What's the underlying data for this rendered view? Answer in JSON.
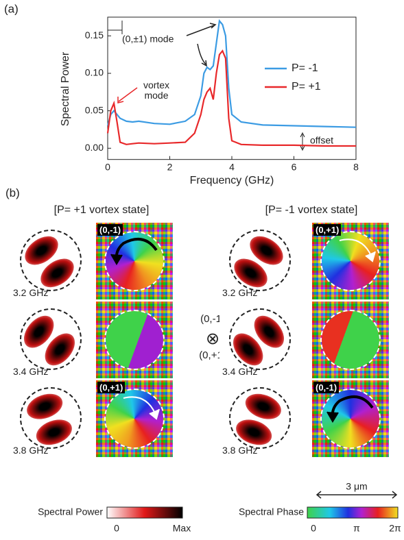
{
  "chart_data": {
    "type": "line",
    "panel_label": "(a)",
    "xlabel": "Frequency (GHz)",
    "ylabel": "Spectral Power",
    "x": [
      0,
      0.1,
      0.2,
      0.3,
      0.4,
      0.6,
      0.8,
      1,
      1.5,
      2,
      2.5,
      2.8,
      3,
      3.1,
      3.2,
      3.3,
      3.4,
      3.5,
      3.6,
      3.7,
      3.8,
      3.9,
      4,
      4.3,
      5,
      6,
      7,
      8
    ],
    "series": [
      {
        "name": "P= -1",
        "color": "#3b9be3",
        "values": [
          0.03,
          0.045,
          0.05,
          0.045,
          0.04,
          0.036,
          0.035,
          0.036,
          0.033,
          0.032,
          0.036,
          0.045,
          0.07,
          0.1,
          0.108,
          0.105,
          0.11,
          0.14,
          0.17,
          0.165,
          0.15,
          0.08,
          0.045,
          0.035,
          0.031,
          0.03,
          0.029,
          0.028
        ]
      },
      {
        "name": "P= +1",
        "color": "#e8282a",
        "values": [
          0.02,
          0.05,
          0.06,
          0.035,
          0.008,
          0.005,
          0.006,
          0.007,
          0.006,
          0.007,
          0.008,
          0.02,
          0.045,
          0.065,
          0.075,
          0.08,
          0.065,
          0.1,
          0.125,
          0.13,
          0.12,
          0.04,
          0.01,
          0.005,
          0.004,
          0.004,
          0.003,
          0.003
        ]
      }
    ],
    "xlim": [
      0,
      8
    ],
    "ylim": [
      -0.015,
      0.175
    ],
    "xticks": [
      0,
      2,
      4,
      6,
      8
    ],
    "yticks": [
      {
        "value": 0,
        "label": "0.00"
      },
      0.05,
      {
        "value": 0.1,
        "label": "0.10"
      },
      0.15
    ],
    "legend": "right",
    "annotations": {
      "mode": "(0,±1) mode",
      "vortex": "vortex mode",
      "offset": "offset"
    }
  },
  "panel_b": {
    "label": "(b)",
    "left_title": "[P= +1 vortex state]",
    "right_title": "[P= -1 vortex state]",
    "rows": [
      {
        "left_frequency": "3.2 GHz",
        "left_mode": "(0,-1)",
        "right_frequency": "3.2 GHz",
        "right_mode": "(0,+1)"
      },
      {
        "left_frequency": "3.4 GHz",
        "right_frequency": "3.4 GHz"
      },
      {
        "left_frequency": "3.8 GHz",
        "left_mode": "(0,+1)",
        "right_frequency": "3.8 GHz",
        "right_mode": "(0,-1)"
      }
    ],
    "center_top": "(0,-1)",
    "center_symbol": "⊗",
    "center_bottom": "(0,+1)",
    "scale_bar": "3 μm",
    "power_colorbar": {
      "title": "Spectral Power",
      "min_label": "0",
      "max_label": "Max"
    },
    "phase_colorbar": {
      "title": "Spectral Phase",
      "labels": [
        "0",
        "π",
        "2π"
      ]
    }
  }
}
